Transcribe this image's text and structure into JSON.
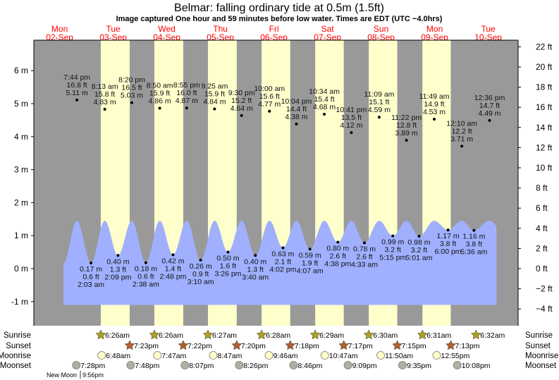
{
  "title": "Belmar: falling  ordinary tide at 0.5m (1.5ft)",
  "subtitle": "Image captured One hour and 59 minutes before low water. Times are EDT (UTC −4.0hrs)",
  "colors": {
    "day": "#ffffcc",
    "night": "#999999",
    "water": "#a0b0ff",
    "date_text": "#ff0000",
    "sunrise": "#b0a020",
    "sunset": "#b06030",
    "moonrise": "#ffffcc",
    "moonset": "#b0b0a0"
  },
  "chart_data": {
    "type": "area",
    "title": "Belmar: falling  ordinary tide at 0.5m (1.5ft)",
    "days": [
      {
        "dow": "Mon",
        "date": "02-Sep"
      },
      {
        "dow": "Tue",
        "date": "03-Sep"
      },
      {
        "dow": "Wed",
        "date": "04-Sep"
      },
      {
        "dow": "Thu",
        "date": "05-Sep"
      },
      {
        "dow": "Fri",
        "date": "06-Sep"
      },
      {
        "dow": "Sat",
        "date": "07-Sep"
      },
      {
        "dow": "Sun",
        "date": "08-Sep"
      },
      {
        "dow": "Mon",
        "date": "09-Sep"
      },
      {
        "dow": "Tue",
        "date": "10-Sep"
      }
    ],
    "y_left": {
      "ticks": [
        "-1 m",
        "0 m",
        "1 m",
        "2 m",
        "3 m",
        "4 m",
        "5 m",
        "6 m"
      ],
      "values": [
        -1,
        0,
        1,
        2,
        3,
        4,
        5,
        6
      ]
    },
    "y_right": {
      "ticks": [
        "−4 ft",
        "−2 ft",
        "0 ft",
        "2 ft",
        "4 ft",
        "6 ft",
        "8 ft",
        "10 ft",
        "12 ft",
        "14 ft",
        "16 ft",
        "18 ft",
        "20 ft",
        "22 ft"
      ],
      "values": [
        -4,
        -2,
        0,
        2,
        4,
        6,
        8,
        10,
        12,
        14,
        16,
        18,
        20,
        22
      ]
    },
    "extremes": [
      {
        "type": "high",
        "day": 0,
        "time": "7:44 pm",
        "ft": "16.8 ft",
        "m": "5.11 m",
        "value": 5.11
      },
      {
        "type": "low",
        "day": 1,
        "time": "2:03 am",
        "ft": "0.6 ft",
        "m": "0.17 m",
        "value": 0.17
      },
      {
        "type": "high",
        "day": 1,
        "time": "8:13 am",
        "ft": "15.8 ft",
        "m": "4.83 m",
        "value": 4.83
      },
      {
        "type": "low",
        "day": 1,
        "time": "2:09 pm",
        "ft": "1.3 ft",
        "m": "0.40 m",
        "value": 0.4
      },
      {
        "type": "high",
        "day": 1,
        "time": "8:20 pm",
        "ft": "16.5 ft",
        "m": "5.03 m",
        "value": 5.03
      },
      {
        "type": "low",
        "day": 2,
        "time": "2:38 am",
        "ft": "0.6 ft",
        "m": "0.18 m",
        "value": 0.18
      },
      {
        "type": "high",
        "day": 2,
        "time": "8:50 am",
        "ft": "15.9 ft",
        "m": "4.86 m",
        "value": 4.86
      },
      {
        "type": "low",
        "day": 2,
        "time": "2:48 pm",
        "ft": "1.4 ft",
        "m": "0.42 m",
        "value": 0.42
      },
      {
        "type": "high",
        "day": 2,
        "time": "8:55 pm",
        "ft": "16.0 ft",
        "m": "4.87 m",
        "value": 4.87
      },
      {
        "type": "low",
        "day": 3,
        "time": "3:10 am",
        "ft": "0.9 ft",
        "m": "0.26 m",
        "value": 0.26
      },
      {
        "type": "high",
        "day": 3,
        "time": "9:25 am",
        "ft": "15.9 ft",
        "m": "4.84 m",
        "value": 4.84
      },
      {
        "type": "low",
        "day": 3,
        "time": "3:26 pm",
        "ft": "1.6 ft",
        "m": "0.50 m",
        "value": 0.5
      },
      {
        "type": "high",
        "day": 3,
        "time": "9:30 pm",
        "ft": "15.2 ft",
        "m": "4.64 m",
        "value": 4.64
      },
      {
        "type": "low",
        "day": 4,
        "time": "3:40 am",
        "ft": "1.3 ft",
        "m": "0.40 m",
        "value": 0.4
      },
      {
        "type": "high",
        "day": 4,
        "time": "10:00 am",
        "ft": "15.6 ft",
        "m": "4.77 m",
        "value": 4.77
      },
      {
        "type": "low",
        "day": 4,
        "time": "4:02 pm",
        "ft": "2.1 ft",
        "m": "0.63 m",
        "value": 0.63
      },
      {
        "type": "high",
        "day": 4,
        "time": "10:04 pm",
        "ft": "14.4 ft",
        "m": "4.38 m",
        "value": 4.38
      },
      {
        "type": "low",
        "day": 5,
        "time": "4:07 am",
        "ft": "1.9 ft",
        "m": "0.59 m",
        "value": 0.59
      },
      {
        "type": "high",
        "day": 5,
        "time": "10:34 am",
        "ft": "15.4 ft",
        "m": "4.68 m",
        "value": 4.68
      },
      {
        "type": "low",
        "day": 5,
        "time": "4:38 pm",
        "ft": "2.6 ft",
        "m": "0.80 m",
        "value": 0.8
      },
      {
        "type": "high",
        "day": 5,
        "time": "10:41 pm",
        "ft": "13.5 ft",
        "m": "4.12 m",
        "value": 4.12
      },
      {
        "type": "low",
        "day": 6,
        "time": "4:33 am",
        "ft": "2.6 ft",
        "m": "0.78 m",
        "value": 0.78
      },
      {
        "type": "high",
        "day": 6,
        "time": "11:09 am",
        "ft": "15.1 ft",
        "m": "4.59 m",
        "value": 4.59
      },
      {
        "type": "low",
        "day": 6,
        "time": "5:15 pm",
        "ft": "3.2 ft",
        "m": "0.99 m",
        "value": 0.99
      },
      {
        "type": "high",
        "day": 6,
        "time": "11:22 pm",
        "ft": "12.8 ft",
        "m": "3.89 m",
        "value": 3.89
      },
      {
        "type": "low",
        "day": 7,
        "time": "5:01 am",
        "ft": "3.2 ft",
        "m": "0.98 m",
        "value": 0.98
      },
      {
        "type": "high",
        "day": 7,
        "time": "11:49 am",
        "ft": "14.9 ft",
        "m": "4.53 m",
        "value": 4.53
      },
      {
        "type": "low",
        "day": 7,
        "time": "6:00 pm",
        "ft": "3.8 ft",
        "m": "1.17 m",
        "value": 1.17
      },
      {
        "type": "high",
        "day": 8,
        "time": "12:10 am",
        "ft": "12.2 ft",
        "m": "3.71 m",
        "value": 3.71
      },
      {
        "type": "low",
        "day": 8,
        "time": "5:36 am",
        "ft": "3.8 ft",
        "m": "1.16 m",
        "value": 1.16
      },
      {
        "type": "high",
        "day": 8,
        "time": "12:36 pm",
        "ft": "14.7 ft",
        "m": "4.49 m",
        "value": 4.49
      }
    ],
    "rows": [
      {
        "label": "Sunrise",
        "kind": "sunrise",
        "events": [
          {
            "day": 1,
            "time": "6:26am"
          },
          {
            "day": 2,
            "time": "6:26am"
          },
          {
            "day": 3,
            "time": "6:27am"
          },
          {
            "day": 4,
            "time": "6:28am"
          },
          {
            "day": 5,
            "time": "6:29am"
          },
          {
            "day": 6,
            "time": "6:30am"
          },
          {
            "day": 7,
            "time": "6:31am"
          },
          {
            "day": 8,
            "time": "6:32am"
          }
        ]
      },
      {
        "label": "Sunset",
        "kind": "sunset",
        "events": [
          {
            "day": 1,
            "time": "7:23pm"
          },
          {
            "day": 2,
            "time": "7:22pm"
          },
          {
            "day": 3,
            "time": "7:20pm"
          },
          {
            "day": 4,
            "time": "7:18pm"
          },
          {
            "day": 5,
            "time": "7:17pm"
          },
          {
            "day": 6,
            "time": "7:15pm"
          },
          {
            "day": 7,
            "time": "7:13pm"
          }
        ]
      },
      {
        "label": "Moonrise",
        "kind": "moonrise",
        "events": [
          {
            "day": 1,
            "time": "6:48am"
          },
          {
            "day": 2,
            "time": "7:47am"
          },
          {
            "day": 3,
            "time": "8:47am"
          },
          {
            "day": 4,
            "time": "9:46am"
          },
          {
            "day": 5,
            "time": "10:47am"
          },
          {
            "day": 6,
            "time": "11:50am"
          },
          {
            "day": 7,
            "time": "12:55pm"
          }
        ]
      },
      {
        "label": "Moonset",
        "kind": "moonset",
        "events": [
          {
            "day": 0,
            "time": "7:28pm"
          },
          {
            "day": 1,
            "time": "7:48pm"
          },
          {
            "day": 2,
            "time": "8:07pm"
          },
          {
            "day": 3,
            "time": "8:26pm"
          },
          {
            "day": 4,
            "time": "8:46pm"
          },
          {
            "day": 5,
            "time": "9:09pm"
          },
          {
            "day": 6,
            "time": "9:35pm"
          },
          {
            "day": 7,
            "time": "10:08pm"
          }
        ]
      }
    ],
    "moon_phase": {
      "label": "New Moon",
      "time": "9:56pm"
    }
  }
}
